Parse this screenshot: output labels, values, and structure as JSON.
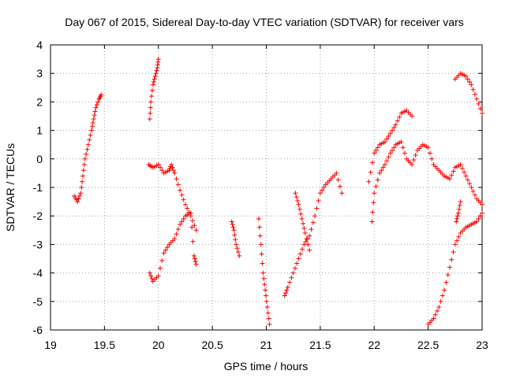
{
  "chart_data": {
    "type": "scatter",
    "title": "Day 067 of 2015, Sidereal Day-to-day VTEC variation (SDTVAR) for receiver vars",
    "xlabel": "GPS time / hours",
    "ylabel": "SDTVAR / TECUs",
    "xlim": [
      19,
      23
    ],
    "ylim": [
      -6,
      4
    ],
    "xticks": [
      19,
      19.5,
      20,
      20.5,
      21,
      21.5,
      22,
      22.5,
      23
    ],
    "xtick_labels": [
      "19",
      "19.5",
      "20",
      "20.5",
      "21",
      "21.5",
      "22",
      "22.5",
      "23"
    ],
    "yticks": [
      -6,
      -5,
      -4,
      -3,
      -2,
      -1,
      0,
      1,
      2,
      3,
      4
    ],
    "ytick_labels": [
      "-6",
      "-5",
      "-4",
      "-3",
      "-2",
      "-1",
      "0",
      "1",
      "2",
      "3",
      "4"
    ],
    "grid": true,
    "marker": "+",
    "color": "#ff0000",
    "segments": [
      {
        "name": "seg1",
        "x": [
          19.22,
          19.25,
          19.28,
          19.3,
          19.32,
          19.35,
          19.38,
          19.4,
          19.42,
          19.45,
          19.47
        ],
        "y": [
          -1.3,
          -1.5,
          -1.2,
          -0.6,
          0.0,
          0.5,
          1.0,
          1.4,
          1.8,
          2.1,
          2.25
        ]
      },
      {
        "name": "seg2",
        "x": [
          19.92,
          19.93,
          19.95,
          19.97,
          19.99,
          20.0
        ],
        "y": [
          1.4,
          2.0,
          2.6,
          2.9,
          3.2,
          3.5
        ]
      },
      {
        "name": "seg3",
        "x": [
          19.91,
          19.95,
          20.0,
          20.05,
          20.1,
          20.12,
          20.15,
          20.2,
          20.25,
          20.3,
          20.35
        ],
        "y": [
          -0.2,
          -0.3,
          -0.2,
          -0.5,
          -0.4,
          -0.2,
          -0.5,
          -1.1,
          -1.6,
          -2.0,
          -2.5
        ]
      },
      {
        "name": "seg4",
        "x": [
          19.92,
          19.95,
          20.0,
          20.05,
          20.1,
          20.15,
          20.2,
          20.25,
          20.3,
          20.33,
          20.35
        ],
        "y": [
          -4.0,
          -4.3,
          -4.1,
          -3.3,
          -3.0,
          -2.8,
          -2.3,
          -2.0,
          -1.9,
          -3.4,
          -3.7
        ]
      },
      {
        "name": "seg5",
        "x": [
          20.68,
          20.7,
          20.72,
          20.75
        ],
        "y": [
          -2.2,
          -2.5,
          -3.0,
          -3.4
        ]
      },
      {
        "name": "seg6",
        "x": [
          20.93,
          20.95,
          20.97,
          20.99,
          21.01,
          21.03
        ],
        "y": [
          -2.1,
          -3.0,
          -4.0,
          -4.6,
          -5.2,
          -5.8
        ]
      },
      {
        "name": "seg7",
        "x": [
          21.17,
          21.2,
          21.25,
          21.3,
          21.35,
          21.4,
          21.45,
          21.5,
          21.55,
          21.6,
          21.65,
          21.7
        ],
        "y": [
          -4.8,
          -4.5,
          -4.0,
          -3.5,
          -3.0,
          -2.7,
          -2.0,
          -1.2,
          -0.9,
          -0.7,
          -0.5,
          -1.2
        ]
      },
      {
        "name": "seg8",
        "x": [
          21.27,
          21.3,
          21.33,
          21.36,
          21.4
        ],
        "y": [
          -1.2,
          -1.6,
          -2.1,
          -2.6,
          -3.2
        ]
      },
      {
        "name": "seg9",
        "x": [
          21.95,
          22.0,
          22.05,
          22.1,
          22.15,
          22.2,
          22.25,
          22.3,
          22.35
        ],
        "y": [
          -0.8,
          0.2,
          0.5,
          0.6,
          0.9,
          1.2,
          1.6,
          1.7,
          1.5
        ]
      },
      {
        "name": "seg10",
        "x": [
          21.98,
          22.0,
          22.05,
          22.1,
          22.15,
          22.2,
          22.25,
          22.3,
          22.35,
          22.4,
          22.45,
          22.5,
          22.55,
          22.6,
          22.65,
          22.7,
          22.75,
          22.8,
          22.85,
          22.9,
          22.95,
          23.0
        ],
        "y": [
          -2.2,
          -1.2,
          -0.5,
          -0.2,
          0.2,
          0.5,
          0.6,
          0.0,
          -0.2,
          0.3,
          0.5,
          0.4,
          -0.2,
          -0.4,
          -0.6,
          -0.7,
          -0.3,
          -0.2,
          -0.6,
          -1.0,
          -1.4,
          -1.6
        ]
      },
      {
        "name": "seg11",
        "x": [
          22.5,
          22.55,
          22.6,
          22.65,
          22.7,
          22.75,
          22.8,
          22.85,
          22.9,
          22.95,
          23.0
        ],
        "y": [
          -5.8,
          -5.6,
          -5.2,
          -4.6,
          -3.8,
          -3.0,
          -2.6,
          -2.4,
          -2.3,
          -2.2,
          -1.9
        ]
      },
      {
        "name": "seg12",
        "x": [
          22.75,
          22.8,
          22.85,
          22.9,
          22.95,
          23.0
        ],
        "y": [
          2.8,
          3.0,
          2.9,
          2.6,
          2.1,
          1.6
        ]
      },
      {
        "name": "seg13",
        "x": [
          22.8,
          22.78,
          22.76
        ],
        "y": [
          -1.5,
          -1.9,
          -2.2
        ]
      }
    ]
  }
}
